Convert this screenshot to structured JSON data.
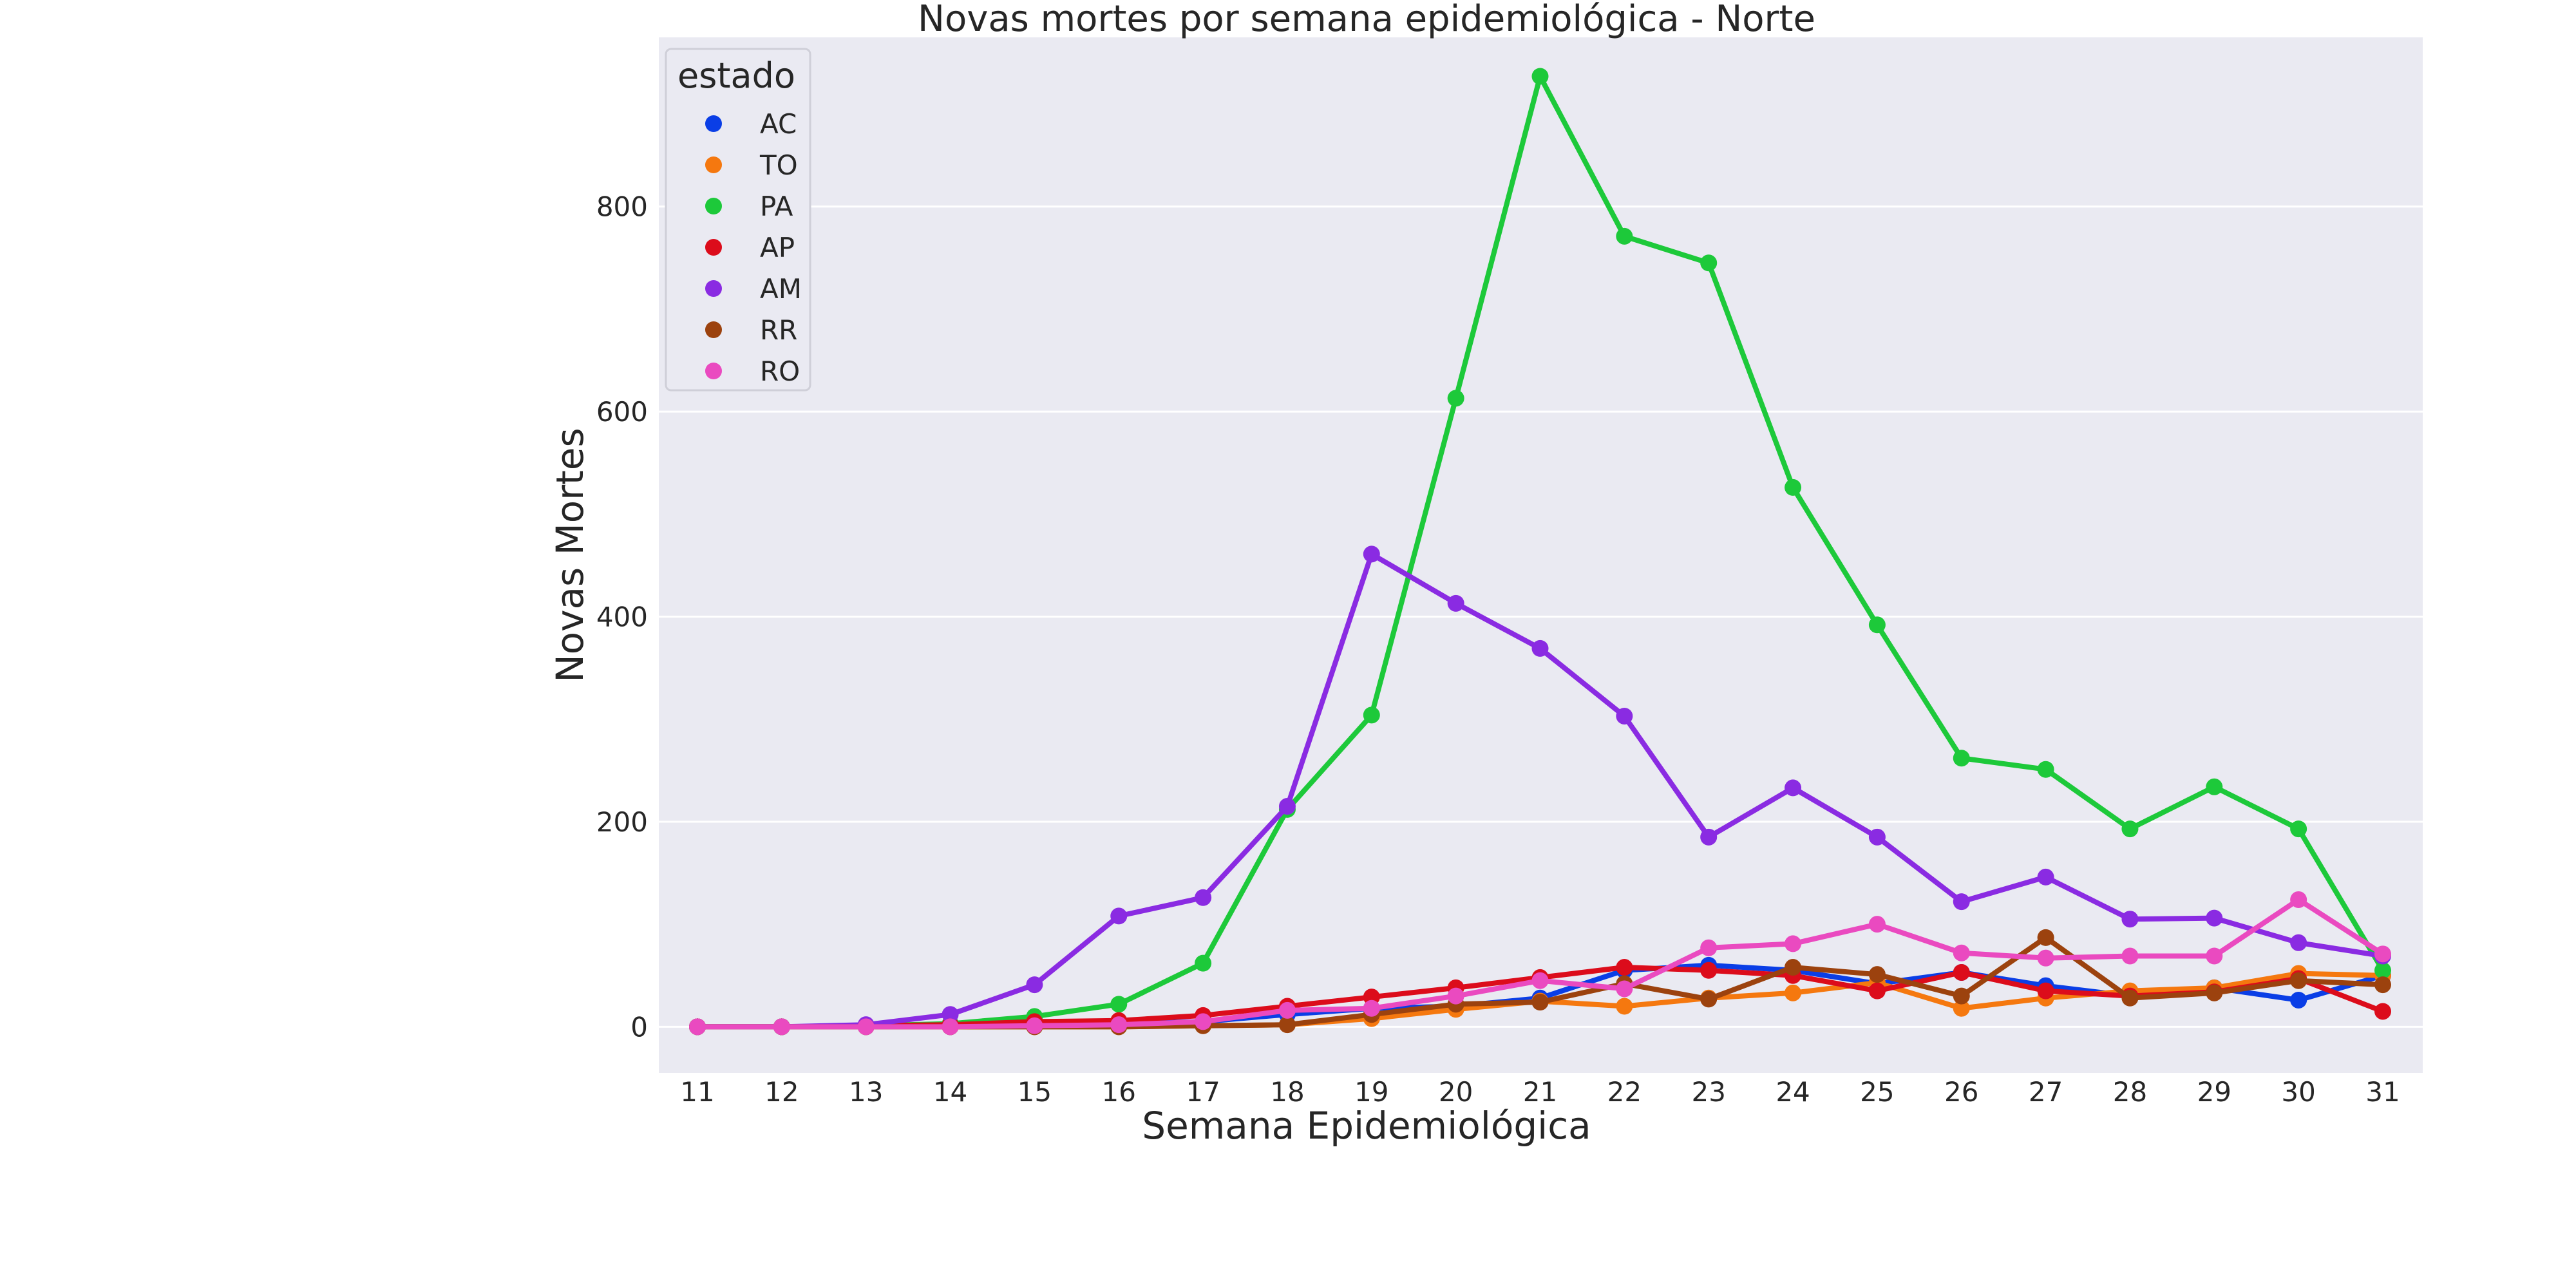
{
  "chart_data": {
    "type": "line",
    "title": "Novas mortes por semana epidemiológica - Norte",
    "xlabel": "Semana Epidemiológica",
    "ylabel": "Novas Mortes",
    "categories": [
      "11",
      "12",
      "13",
      "14",
      "15",
      "16",
      "17",
      "18",
      "19",
      "20",
      "21",
      "22",
      "23",
      "24",
      "25",
      "26",
      "27",
      "28",
      "29",
      "30",
      "31"
    ],
    "yticks": [
      0,
      200,
      400,
      600,
      800
    ],
    "ylim": [
      -45,
      965
    ],
    "grid": true,
    "legend": {
      "title": "estado",
      "placement": "top-left"
    },
    "series": [
      {
        "name": "AC",
        "color": "#0a3ee6",
        "values": [
          0,
          0,
          0,
          0,
          2,
          3,
          5,
          12,
          18,
          20,
          28,
          55,
          60,
          55,
          42,
          53,
          40,
          30,
          38,
          26,
          50
        ]
      },
      {
        "name": "TO",
        "color": "#f5780f",
        "values": [
          0,
          0,
          0,
          0,
          0,
          0,
          1,
          2,
          8,
          17,
          25,
          20,
          28,
          33,
          43,
          18,
          28,
          35,
          38,
          52,
          50
        ]
      },
      {
        "name": "PA",
        "color": "#1dc93a",
        "values": [
          0,
          0,
          1,
          3,
          10,
          22,
          62,
          212,
          304,
          613,
          927,
          771,
          745,
          526,
          392,
          262,
          251,
          193,
          234,
          193,
          55
        ]
      },
      {
        "name": "AP",
        "color": "#dc0c1b",
        "values": [
          0,
          0,
          1,
          2,
          5,
          6,
          11,
          20,
          29,
          38,
          48,
          58,
          55,
          50,
          35,
          53,
          35,
          30,
          34,
          47,
          15
        ]
      },
      {
        "name": "AM",
        "color": "#8a2be2",
        "values": [
          0,
          0,
          2,
          12,
          41,
          108,
          126,
          215,
          461,
          413,
          369,
          303,
          185,
          233,
          185,
          122,
          146,
          105,
          106,
          82,
          69
        ]
      },
      {
        "name": "RR",
        "color": "#9c420e",
        "values": [
          0,
          0,
          0,
          0,
          0,
          0,
          1,
          2,
          12,
          22,
          24,
          42,
          27,
          58,
          51,
          30,
          87,
          28,
          33,
          45,
          41
        ]
      },
      {
        "name": "RO",
        "color": "#ea4ac0",
        "values": [
          0,
          0,
          0,
          0,
          1,
          2,
          5,
          16,
          18,
          30,
          45,
          37,
          77,
          81,
          100,
          72,
          67,
          69,
          69,
          124,
          71
        ]
      }
    ]
  }
}
